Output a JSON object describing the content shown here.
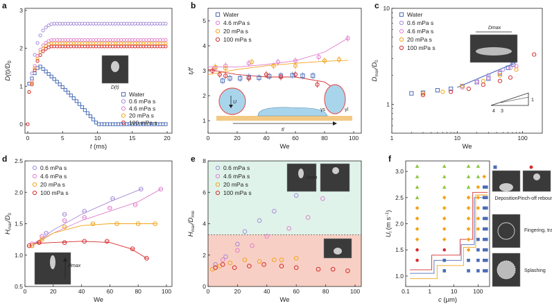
{
  "colors": {
    "water": "#4a6cb8",
    "0.6 mPa s": "#a58ad8",
    "4.6 mPa s": "#e07fcf",
    "20 mPa s": "#f2a319",
    "100 mPa s": "#d62d2d",
    "green_region": "#dff3ea",
    "red_region": "#f8cfc4",
    "triangle": "#8cc63f"
  },
  "chart_data": [
    {
      "panel": "a",
      "type": "scatter",
      "xlabel": "t (ms)",
      "ylabel": "D(t)/D0",
      "xlim": [
        0,
        20
      ],
      "ylim": [
        0,
        3
      ],
      "xticks": [
        "0",
        "5",
        "10",
        "15",
        "20"
      ],
      "yticks": [
        "0",
        "1",
        "2",
        "3"
      ],
      "inset_label": "D(t)",
      "series": [
        {
          "name": "Water",
          "key": "water",
          "shape": "square",
          "curve": "water"
        },
        {
          "name": "0.6 mPa s",
          "key": "0.6 mPa s",
          "shape": "circle",
          "plateau": 2.65
        },
        {
          "name": "4.6 mPa s",
          "key": "4.6 mPa s",
          "shape": "circle",
          "plateau": 2.22
        },
        {
          "name": "20 mPa s",
          "key": "20 mPa s",
          "shape": "circle",
          "plateau": 2.13
        },
        {
          "name": "100 mPa s",
          "key": "100 mPa s",
          "shape": "circle",
          "plateau": 2.05
        }
      ]
    },
    {
      "panel": "b",
      "type": "scatter",
      "xlabel": "We",
      "ylabel": "tl/t'l",
      "xlim": [
        0,
        100
      ],
      "ylim": [
        0.5,
        5.5
      ],
      "xticks": [
        "0",
        "20",
        "40",
        "60",
        "80",
        "100"
      ],
      "yticks": [
        "1",
        "2",
        "3",
        "4",
        "5"
      ],
      "inset": {
        "u": "U",
        "tl": "tl",
        "gs": "γs",
        "gl": "γl"
      },
      "series": [
        {
          "name": "Water",
          "key": "water",
          "shape": "square",
          "x": [
            10,
            15,
            22,
            28,
            35,
            42,
            50,
            58,
            65,
            72
          ],
          "y": [
            2.6,
            2.7,
            2.7,
            2.75,
            2.72,
            2.78,
            2.8,
            2.82,
            2.8,
            2.8
          ]
        },
        {
          "name": "4.6 mPa s",
          "key": "4.6 mPa s",
          "shape": "circle",
          "x": [
            5,
            12,
            28,
            48,
            60,
            76,
            96
          ],
          "y": [
            3.1,
            3.2,
            3.3,
            3.35,
            3.4,
            3.55,
            4.3
          ]
        },
        {
          "name": "20 mPa s",
          "key": "20 mPa s",
          "shape": "circle",
          "x": [
            5,
            12,
            30,
            45,
            60,
            80,
            90
          ],
          "y": [
            3.15,
            3.1,
            3.35,
            3.2,
            3.2,
            3.4,
            3.45
          ]
        },
        {
          "name": "100 mPa s",
          "key": "100 mPa s",
          "shape": "circle",
          "x": [
            3,
            8,
            12,
            28,
            40,
            50,
            60,
            75,
            85
          ],
          "y": [
            3.0,
            2.85,
            2.8,
            2.7,
            2.85,
            2.75,
            2.85,
            2.45,
            2.15
          ]
        }
      ],
      "fits": [
        {
          "key": "4.6 mPa s",
          "x": [
            0,
            20,
            40,
            60,
            80,
            96
          ],
          "y": [
            3.15,
            3.15,
            3.25,
            3.4,
            3.75,
            4.3
          ]
        },
        {
          "key": "20 mPa s",
          "x": [
            0,
            20,
            40,
            60,
            80,
            96
          ],
          "y": [
            2.85,
            3.05,
            3.2,
            3.3,
            3.38,
            3.42
          ]
        },
        {
          "key": "100 mPa s",
          "x": [
            0,
            20,
            40,
            60,
            80,
            90
          ],
          "y": [
            3.05,
            2.85,
            2.75,
            2.75,
            2.55,
            2.15
          ]
        }
      ]
    },
    {
      "panel": "c",
      "type": "scatter",
      "scale": "log-log",
      "xlabel": "We",
      "ylabel": "Dmax/D0",
      "xlim": [
        1,
        200
      ],
      "ylim": [
        0.5,
        10
      ],
      "xticks": [
        "1",
        "10",
        "100"
      ],
      "yticks": [
        "1",
        "10"
      ],
      "inset_label": "Dmax",
      "slope_triangle": {
        "labels": [
          "4",
          "3",
          "1"
        ]
      },
      "series": [
        {
          "name": "Water",
          "key": "water",
          "shape": "square",
          "x": [
            2,
            3,
            5,
            8,
            12,
            20,
            30,
            45,
            60,
            72
          ],
          "y": [
            1.3,
            1.32,
            1.4,
            1.45,
            1.55,
            1.7,
            1.85,
            2.1,
            2.4,
            2.6
          ]
        },
        {
          "name": "0.6 mPa s",
          "key": "0.6 mPa s",
          "shape": "circle",
          "x": [
            12,
            20,
            30,
            50,
            70
          ],
          "y": [
            1.55,
            1.75,
            2.0,
            2.3,
            2.7
          ]
        },
        {
          "name": "4.6 mPa s",
          "key": "4.6 mPa s",
          "shape": "circle",
          "x": [
            12,
            20,
            30,
            45,
            65,
            80
          ],
          "y": [
            1.5,
            1.7,
            1.9,
            2.15,
            2.4,
            2.5
          ]
        },
        {
          "name": "20 mPa s",
          "key": "20 mPa s",
          "shape": "circle",
          "x": [
            3,
            6,
            12,
            25,
            45,
            80
          ],
          "y": [
            1.3,
            1.35,
            1.55,
            1.75,
            2.0,
            2.3
          ]
        },
        {
          "name": "100 mPa s",
          "key": "100 mPa s",
          "shape": "circle",
          "x": [
            3,
            8,
            15,
            25,
            45,
            65,
            150
          ],
          "y": [
            1.25,
            1.35,
            1.45,
            1.6,
            1.75,
            1.9,
            3.3
          ]
        }
      ],
      "fits": [
        {
          "key": "water",
          "x": [
            10,
            72
          ],
          "y": [
            1.5,
            2.65
          ]
        }
      ]
    },
    {
      "panel": "d",
      "type": "scatter",
      "xlabel": "We",
      "ylabel": "Hmax/D0",
      "xlim": [
        0,
        100
      ],
      "ylim": [
        0.5,
        2.5
      ],
      "xticks": [
        "0",
        "20",
        "40",
        "60",
        "80",
        "100"
      ],
      "yticks": [
        "0.5",
        "1.0",
        "1.5",
        "2.0",
        "2.5"
      ],
      "inset_label": "Hmax",
      "series": [
        {
          "name": "0.6 mPa s",
          "key": "0.6 mPa s",
          "shape": "circle",
          "x": [
            5,
            15,
            28,
            42,
            62,
            82
          ],
          "y": [
            1.15,
            1.35,
            1.65,
            1.7,
            1.9,
            2.05
          ]
        },
        {
          "name": "4.6 mPa s",
          "key": "4.6 mPa s",
          "shape": "circle",
          "x": [
            5,
            12,
            28,
            42,
            60,
            78,
            96
          ],
          "y": [
            1.18,
            1.3,
            1.55,
            1.6,
            1.75,
            1.8,
            2.05
          ]
        },
        {
          "name": "20 mPa s",
          "key": "20 mPa s",
          "shape": "circle",
          "x": [
            5,
            12,
            28,
            48,
            65,
            80,
            92
          ],
          "y": [
            1.15,
            1.25,
            1.45,
            1.5,
            1.5,
            1.5,
            1.5
          ]
        },
        {
          "name": "100 mPa s",
          "key": "100 mPa s",
          "shape": "circle",
          "x": [
            3,
            10,
            28,
            42,
            58,
            76,
            86
          ],
          "y": [
            1.15,
            1.2,
            1.2,
            1.22,
            1.22,
            1.1,
            0.95
          ]
        }
      ],
      "fits": [
        {
          "key": "0.6 mPa s",
          "x": [
            5,
            20,
            40,
            60,
            82
          ],
          "y": [
            1.15,
            1.4,
            1.65,
            1.85,
            2.05
          ]
        },
        {
          "key": "4.6 mPa s",
          "x": [
            5,
            20,
            40,
            60,
            80,
            96
          ],
          "y": [
            1.18,
            1.35,
            1.55,
            1.7,
            1.85,
            2.05
          ]
        },
        {
          "key": "20 mPa s",
          "x": [
            5,
            20,
            40,
            60,
            80,
            92
          ],
          "y": [
            1.15,
            1.35,
            1.47,
            1.5,
            1.5,
            1.5
          ]
        },
        {
          "key": "100 mPa s",
          "x": [
            3,
            20,
            40,
            60,
            75,
            86
          ],
          "y": [
            1.18,
            1.2,
            1.22,
            1.2,
            1.1,
            0.95
          ]
        }
      ]
    },
    {
      "panel": "e",
      "type": "scatter",
      "xlabel": "We",
      "ylabel": "Hmax/Dmin",
      "xlim": [
        0,
        100
      ],
      "ylim": [
        0,
        8
      ],
      "xticks": [
        "0",
        "20",
        "40",
        "60",
        "80",
        "100"
      ],
      "yticks": [
        "0",
        "2",
        "4",
        "6",
        "8"
      ],
      "threshold": 3.3,
      "inset_label": "Dmin",
      "series": [
        {
          "name": "0.6 mPa s",
          "key": "0.6 mPa s",
          "shape": "circle",
          "x": [
            5,
            12,
            20,
            25,
            35,
            45,
            60
          ],
          "y": [
            1.4,
            1.9,
            2.7,
            3.5,
            4.2,
            4.8,
            5.8
          ]
        },
        {
          "name": "4.6 mPa s",
          "key": "4.6 mPa s",
          "shape": "circle",
          "x": [
            5,
            10,
            20,
            30,
            40,
            55,
            68,
            78
          ],
          "y": [
            1.2,
            1.7,
            2.3,
            2.6,
            3.2,
            3.7,
            4.4,
            5.6
          ]
        },
        {
          "name": "20 mPa s",
          "key": "20 mPa s",
          "shape": "circle",
          "x": [
            3,
            8,
            15,
            25,
            35,
            45,
            50,
            60
          ],
          "y": [
            1.1,
            1.3,
            1.5,
            1.7,
            1.6,
            1.7,
            1.7,
            1.8
          ]
        },
        {
          "name": "100 mPa s",
          "key": "100 mPa s",
          "shape": "circle",
          "x": [
            5,
            10,
            18,
            28,
            38,
            50,
            60,
            75,
            85,
            95
          ],
          "y": [
            1.2,
            1.4,
            1.2,
            1.3,
            1.4,
            1.3,
            1.2,
            1.1,
            1.1,
            1.0
          ]
        }
      ]
    },
    {
      "panel": "f",
      "type": "scatter",
      "scale": "log-x",
      "xlabel": "c (μm)",
      "ylabel": "Ul (m s-1)",
      "xlim": [
        0.1,
        300
      ],
      "ylim": [
        0.8,
        3.2
      ],
      "xticks": [
        "0.1",
        "1",
        "10",
        "100"
      ],
      "yticks": [
        "1.0",
        "1.5",
        "2.0",
        "2.5",
        "3.0"
      ],
      "legend_images": [
        "Deposition",
        "Pinch-off rebound",
        "Fingering, transition",
        "Splashing"
      ],
      "series": [
        {
          "name": "Deposition",
          "shape": "square",
          "key": "water",
          "c": [
            4,
            40,
            100,
            180,
            220
          ],
          "u": [
            [
              1.1,
              1.3
            ],
            [
              1.1,
              1.3
            ],
            [
              1.1,
              1.3,
              1.5,
              1.7
            ],
            [
              1.1,
              1.3,
              1.5,
              1.7,
              1.9,
              2.1,
              2.3,
              2.5,
              2.7
            ],
            [
              1.1,
              1.3,
              1.5,
              1.7,
              1.9,
              2.1,
              2.3,
              2.5,
              2.7
            ]
          ]
        },
        {
          "name": "Pinch-off rebound",
          "shape": "circle",
          "key": "100 mPa s",
          "c": [
            0.3,
            4
          ],
          "u": [
            [
              1.3,
              1.5
            ],
            [
              1.5
            ]
          ]
        },
        {
          "name": "Fingering, transition",
          "shape": "diamond",
          "key": "20 mPa s",
          "c": [
            0.3,
            4,
            40,
            100,
            180
          ],
          "u": [
            [
              1.7,
              1.9,
              2.1,
              2.3
            ],
            [
              1.7,
              1.9,
              2.1,
              2.3,
              2.5
            ],
            [
              1.5,
              1.7,
              1.9,
              2.1,
              2.3,
              2.5
            ],
            [
              1.9,
              2.1,
              2.3,
              2.5,
              2.7
            ],
            [
              2.9
            ]
          ]
        },
        {
          "name": "Splashing",
          "shape": "triangle",
          "key": "triangle",
          "c": [
            0.3,
            4,
            40,
            100
          ],
          "u": [
            [
              2.5,
              2.7,
              2.9,
              3.1
            ],
            [
              2.7,
              2.9,
              3.1
            ],
            [
              2.7,
              2.9,
              3.1
            ],
            [
              2.9,
              3.1
            ]
          ]
        }
      ],
      "boundaries": [
        {
          "key": "water",
          "c": [
            0.15,
            1.5,
            1.5,
            20,
            20,
            70,
            70,
            250
          ],
          "u": [
            1.05,
            1.05,
            1.3,
            1.3,
            1.6,
            1.6,
            2.5,
            2.5
          ]
        },
        {
          "key": "100 mPa s",
          "c": [
            0.15,
            1.2,
            1.2,
            18,
            18,
            60,
            60,
            250
          ],
          "u": [
            1.12,
            1.12,
            1.4,
            1.4,
            1.7,
            1.7,
            2.6,
            2.6
          ]
        },
        {
          "key": "20 mPa s",
          "c": [
            0.15,
            2,
            2,
            25,
            25,
            80,
            80,
            250
          ],
          "u": [
            0.95,
            0.95,
            1.2,
            1.2,
            1.55,
            1.55,
            2.55,
            2.55
          ]
        }
      ]
    }
  ]
}
